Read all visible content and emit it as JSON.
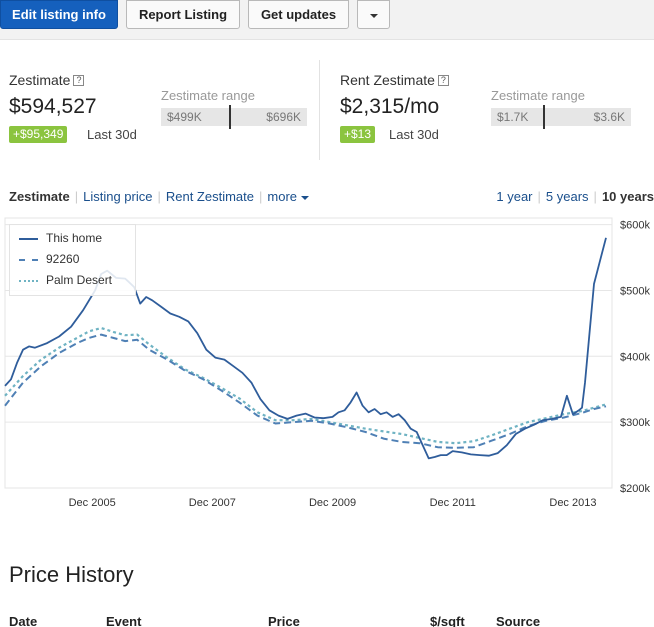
{
  "toolbar": {
    "edit_label": "Edit listing info",
    "report_label": "Report Listing",
    "updates_label": "Get updates"
  },
  "zestimate": {
    "label": "Zestimate",
    "value": "$594,527",
    "change": "+$95,349",
    "period": "Last 30d",
    "range_label": "Zestimate range",
    "range_low": "$499K",
    "range_high": "$696K"
  },
  "rent": {
    "label": "Rent Zestimate",
    "value": "$2,315/mo",
    "change": "+$13",
    "period": "Last 30d",
    "range_label": "Zestimate range",
    "range_low": "$1.7K",
    "range_high": "$3.6K"
  },
  "tabs": [
    "Zestimate",
    "Listing price",
    "Rent Zestimate",
    "more"
  ],
  "ranges": [
    "1 year",
    "5 years",
    "10 years"
  ],
  "colors": {
    "primary": "#1560bd",
    "change_badge": "#8bc43f",
    "link": "#1a4f8c",
    "this_home": "#2f5d9b",
    "zip": "#4f80b5",
    "city": "#6fb3c3"
  },
  "chart_data": {
    "type": "line",
    "x_unit": "year",
    "xlim": [
      2004.5,
      2014.6
    ],
    "ylim": [
      200000,
      610000
    ],
    "y_ticks": [
      "$600k",
      "$500k",
      "$400k",
      "$300k",
      "$200k"
    ],
    "y_tick_values": [
      600000,
      500000,
      400000,
      300000,
      200000
    ],
    "x_ticks": [
      "Dec 2005",
      "Dec 2007",
      "Dec 2009",
      "Dec 2011",
      "Dec 2013"
    ],
    "x_tick_values": [
      2005.95,
      2007.95,
      2009.95,
      2011.95,
      2013.95
    ],
    "legend_position": "top-left",
    "grid": true,
    "series": [
      {
        "name": "This home",
        "style": "solid",
        "color": "#2f5d9b",
        "x": [
          2004.5,
          2004.6,
          2004.7,
          2004.8,
          2004.9,
          2005.0,
          2005.2,
          2005.4,
          2005.6,
          2005.8,
          2006.0,
          2006.1,
          2006.2,
          2006.35,
          2006.5,
          2006.65,
          2006.75,
          2006.85,
          2006.95,
          2007.1,
          2007.25,
          2007.4,
          2007.55,
          2007.7,
          2007.85,
          2008.0,
          2008.15,
          2008.3,
          2008.45,
          2008.6,
          2008.75,
          2008.9,
          2009.05,
          2009.2,
          2009.35,
          2009.5,
          2009.65,
          2009.8,
          2009.95,
          2010.05,
          2010.15,
          2010.25,
          2010.35,
          2010.45,
          2010.55,
          2010.65,
          2010.75,
          2010.85,
          2010.95,
          2011.05,
          2011.15,
          2011.25,
          2011.35,
          2011.45,
          2011.55,
          2011.65,
          2011.75,
          2011.85,
          2011.95,
          2012.1,
          2012.25,
          2012.4,
          2012.55,
          2012.7,
          2012.85,
          2013.0,
          2013.15,
          2013.3,
          2013.45,
          2013.6,
          2013.75,
          2013.85,
          2013.95,
          2014.0,
          2014.05,
          2014.1,
          2014.15,
          2014.22,
          2014.3,
          2014.4,
          2014.5
        ],
        "y": [
          355000,
          365000,
          390000,
          410000,
          415000,
          413000,
          420000,
          430000,
          445000,
          470000,
          500000,
          525000,
          530000,
          519000,
          518000,
          505000,
          480000,
          490000,
          485000,
          475000,
          465000,
          460000,
          453000,
          435000,
          410000,
          398000,
          395000,
          385000,
          375000,
          360000,
          335000,
          318000,
          310000,
          305000,
          310000,
          313000,
          307000,
          306000,
          308000,
          315000,
          318000,
          330000,
          345000,
          325000,
          315000,
          320000,
          312000,
          315000,
          308000,
          312000,
          303000,
          290000,
          285000,
          265000,
          245000,
          247000,
          250000,
          250000,
          256000,
          254000,
          251000,
          250000,
          249000,
          253000,
          265000,
          282000,
          290000,
          296000,
          303000,
          305000,
          308000,
          340000,
          312000,
          315000,
          318000,
          322000,
          360000,
          430000,
          510000,
          545000,
          580000
        ]
      },
      {
        "name": "92260",
        "style": "dashed",
        "color": "#4f80b5",
        "x": [
          2004.5,
          2004.8,
          2005.1,
          2005.4,
          2005.7,
          2005.9,
          2006.1,
          2006.3,
          2006.5,
          2006.7,
          2006.9,
          2007.2,
          2007.5,
          2007.8,
          2008.1,
          2008.4,
          2008.7,
          2009.0,
          2009.3,
          2009.6,
          2009.9,
          2010.2,
          2010.5,
          2010.8,
          2011.1,
          2011.4,
          2011.7,
          2012.0,
          2012.3,
          2012.6,
          2012.9,
          2013.2,
          2013.5,
          2013.8,
          2014.1,
          2014.3,
          2014.5
        ],
        "y": [
          325000,
          360000,
          385000,
          405000,
          420000,
          428000,
          433000,
          428000,
          423000,
          425000,
          410000,
          395000,
          378000,
          365000,
          348000,
          330000,
          310000,
          298000,
          300000,
          302000,
          298000,
          292000,
          285000,
          275000,
          270000,
          268000,
          262000,
          261000,
          262000,
          272000,
          282000,
          294000,
          302000,
          307000,
          314000,
          320000,
          324000
        ]
      },
      {
        "name": "Palm Desert",
        "style": "dotted",
        "color": "#6fb3c3",
        "x": [
          2004.5,
          2004.8,
          2005.1,
          2005.4,
          2005.7,
          2005.9,
          2006.1,
          2006.3,
          2006.5,
          2006.7,
          2006.9,
          2007.2,
          2007.5,
          2007.8,
          2008.1,
          2008.4,
          2008.7,
          2009.0,
          2009.3,
          2009.6,
          2009.9,
          2010.2,
          2010.5,
          2010.8,
          2011.1,
          2011.4,
          2011.7,
          2012.0,
          2012.3,
          2012.6,
          2012.9,
          2013.2,
          2013.5,
          2013.8,
          2014.1,
          2014.3,
          2014.5
        ],
        "y": [
          340000,
          370000,
          395000,
          413000,
          428000,
          438000,
          443000,
          437000,
          432000,
          433000,
          418000,
          398000,
          380000,
          367000,
          352000,
          336000,
          315000,
          303000,
          303000,
          305000,
          300000,
          295000,
          290000,
          286000,
          282000,
          276000,
          270000,
          268000,
          271000,
          280000,
          290000,
          300000,
          306000,
          312000,
          317000,
          322000,
          327000
        ]
      }
    ]
  },
  "price_history": {
    "title": "Price History",
    "columns": [
      "Date",
      "Event",
      "Price",
      "$/sqft",
      "Source"
    ]
  }
}
